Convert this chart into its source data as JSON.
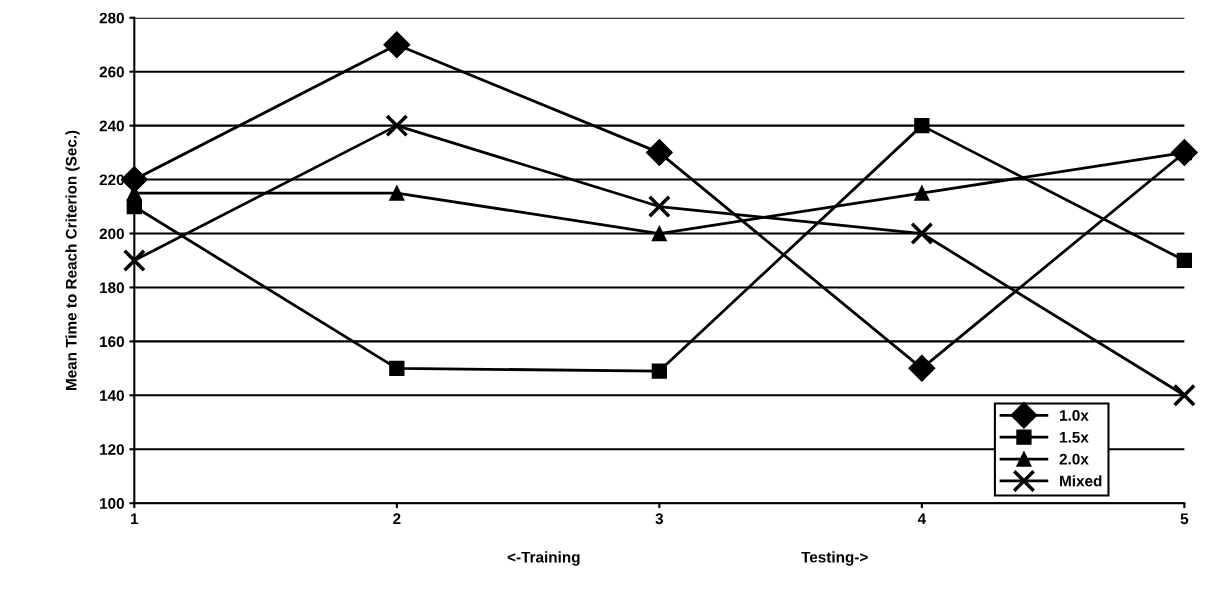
{
  "chart_data": {
    "type": "line",
    "ylabel": "Mean Time to Reach Criterion (Sec.)",
    "x": [
      1,
      2,
      3,
      4,
      5
    ],
    "xlim": [
      1,
      5
    ],
    "xticks": [
      1,
      2,
      3,
      4,
      5
    ],
    "ylim": [
      100,
      280
    ],
    "yticks": [
      100,
      120,
      140,
      160,
      180,
      200,
      220,
      240,
      260,
      280
    ],
    "grid": "y",
    "legend": "bottom right",
    "series": [
      {
        "name": "1.0x",
        "color": "#000000",
        "marker": "diamond",
        "values": [
          220,
          270,
          230,
          150,
          230
        ]
      },
      {
        "name": "1.5x",
        "color": "#000000",
        "marker": "square",
        "values": [
          210,
          150,
          149,
          240,
          190
        ]
      },
      {
        "name": "2.0x",
        "color": "#000000",
        "marker": "triangle",
        "values": [
          215,
          215,
          200,
          215,
          230
        ]
      },
      {
        "name": "Mixed",
        "color": "#000000",
        "marker": "cross",
        "values": [
          190,
          240,
          210,
          200,
          140
        ]
      }
    ],
    "annotations": [
      "<-Training",
      "Testing->"
    ]
  }
}
